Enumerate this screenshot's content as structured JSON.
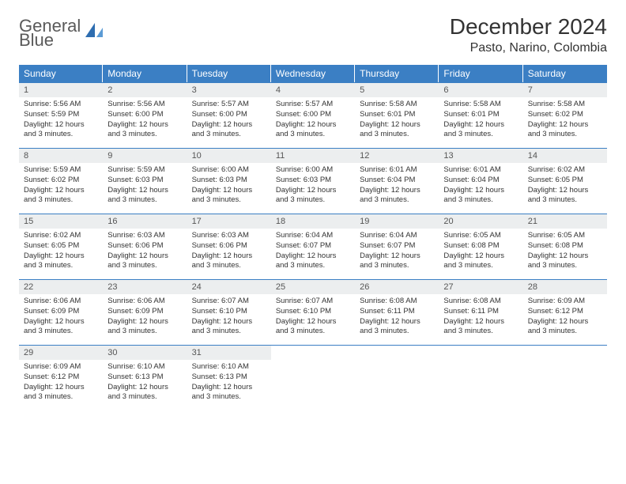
{
  "logo": {
    "line1": "General",
    "line2": "Blue"
  },
  "title": "December 2024",
  "location": "Pasto, Narino, Colombia",
  "colors": {
    "header_blue": "#3b7fc4",
    "date_bg": "#eceeef",
    "text": "#333333",
    "logo_gray": "#5a5a5a"
  },
  "weekdays": [
    "Sunday",
    "Monday",
    "Tuesday",
    "Wednesday",
    "Thursday",
    "Friday",
    "Saturday"
  ],
  "weeks": [
    [
      {
        "date": "1",
        "sunrise": "Sunrise: 5:56 AM",
        "sunset": "Sunset: 5:59 PM",
        "daylight": "Daylight: 12 hours and 3 minutes."
      },
      {
        "date": "2",
        "sunrise": "Sunrise: 5:56 AM",
        "sunset": "Sunset: 6:00 PM",
        "daylight": "Daylight: 12 hours and 3 minutes."
      },
      {
        "date": "3",
        "sunrise": "Sunrise: 5:57 AM",
        "sunset": "Sunset: 6:00 PM",
        "daylight": "Daylight: 12 hours and 3 minutes."
      },
      {
        "date": "4",
        "sunrise": "Sunrise: 5:57 AM",
        "sunset": "Sunset: 6:00 PM",
        "daylight": "Daylight: 12 hours and 3 minutes."
      },
      {
        "date": "5",
        "sunrise": "Sunrise: 5:58 AM",
        "sunset": "Sunset: 6:01 PM",
        "daylight": "Daylight: 12 hours and 3 minutes."
      },
      {
        "date": "6",
        "sunrise": "Sunrise: 5:58 AM",
        "sunset": "Sunset: 6:01 PM",
        "daylight": "Daylight: 12 hours and 3 minutes."
      },
      {
        "date": "7",
        "sunrise": "Sunrise: 5:58 AM",
        "sunset": "Sunset: 6:02 PM",
        "daylight": "Daylight: 12 hours and 3 minutes."
      }
    ],
    [
      {
        "date": "8",
        "sunrise": "Sunrise: 5:59 AM",
        "sunset": "Sunset: 6:02 PM",
        "daylight": "Daylight: 12 hours and 3 minutes."
      },
      {
        "date": "9",
        "sunrise": "Sunrise: 5:59 AM",
        "sunset": "Sunset: 6:03 PM",
        "daylight": "Daylight: 12 hours and 3 minutes."
      },
      {
        "date": "10",
        "sunrise": "Sunrise: 6:00 AM",
        "sunset": "Sunset: 6:03 PM",
        "daylight": "Daylight: 12 hours and 3 minutes."
      },
      {
        "date": "11",
        "sunrise": "Sunrise: 6:00 AM",
        "sunset": "Sunset: 6:03 PM",
        "daylight": "Daylight: 12 hours and 3 minutes."
      },
      {
        "date": "12",
        "sunrise": "Sunrise: 6:01 AM",
        "sunset": "Sunset: 6:04 PM",
        "daylight": "Daylight: 12 hours and 3 minutes."
      },
      {
        "date": "13",
        "sunrise": "Sunrise: 6:01 AM",
        "sunset": "Sunset: 6:04 PM",
        "daylight": "Daylight: 12 hours and 3 minutes."
      },
      {
        "date": "14",
        "sunrise": "Sunrise: 6:02 AM",
        "sunset": "Sunset: 6:05 PM",
        "daylight": "Daylight: 12 hours and 3 minutes."
      }
    ],
    [
      {
        "date": "15",
        "sunrise": "Sunrise: 6:02 AM",
        "sunset": "Sunset: 6:05 PM",
        "daylight": "Daylight: 12 hours and 3 minutes."
      },
      {
        "date": "16",
        "sunrise": "Sunrise: 6:03 AM",
        "sunset": "Sunset: 6:06 PM",
        "daylight": "Daylight: 12 hours and 3 minutes."
      },
      {
        "date": "17",
        "sunrise": "Sunrise: 6:03 AM",
        "sunset": "Sunset: 6:06 PM",
        "daylight": "Daylight: 12 hours and 3 minutes."
      },
      {
        "date": "18",
        "sunrise": "Sunrise: 6:04 AM",
        "sunset": "Sunset: 6:07 PM",
        "daylight": "Daylight: 12 hours and 3 minutes."
      },
      {
        "date": "19",
        "sunrise": "Sunrise: 6:04 AM",
        "sunset": "Sunset: 6:07 PM",
        "daylight": "Daylight: 12 hours and 3 minutes."
      },
      {
        "date": "20",
        "sunrise": "Sunrise: 6:05 AM",
        "sunset": "Sunset: 6:08 PM",
        "daylight": "Daylight: 12 hours and 3 minutes."
      },
      {
        "date": "21",
        "sunrise": "Sunrise: 6:05 AM",
        "sunset": "Sunset: 6:08 PM",
        "daylight": "Daylight: 12 hours and 3 minutes."
      }
    ],
    [
      {
        "date": "22",
        "sunrise": "Sunrise: 6:06 AM",
        "sunset": "Sunset: 6:09 PM",
        "daylight": "Daylight: 12 hours and 3 minutes."
      },
      {
        "date": "23",
        "sunrise": "Sunrise: 6:06 AM",
        "sunset": "Sunset: 6:09 PM",
        "daylight": "Daylight: 12 hours and 3 minutes."
      },
      {
        "date": "24",
        "sunrise": "Sunrise: 6:07 AM",
        "sunset": "Sunset: 6:10 PM",
        "daylight": "Daylight: 12 hours and 3 minutes."
      },
      {
        "date": "25",
        "sunrise": "Sunrise: 6:07 AM",
        "sunset": "Sunset: 6:10 PM",
        "daylight": "Daylight: 12 hours and 3 minutes."
      },
      {
        "date": "26",
        "sunrise": "Sunrise: 6:08 AM",
        "sunset": "Sunset: 6:11 PM",
        "daylight": "Daylight: 12 hours and 3 minutes."
      },
      {
        "date": "27",
        "sunrise": "Sunrise: 6:08 AM",
        "sunset": "Sunset: 6:11 PM",
        "daylight": "Daylight: 12 hours and 3 minutes."
      },
      {
        "date": "28",
        "sunrise": "Sunrise: 6:09 AM",
        "sunset": "Sunset: 6:12 PM",
        "daylight": "Daylight: 12 hours and 3 minutes."
      }
    ],
    [
      {
        "date": "29",
        "sunrise": "Sunrise: 6:09 AM",
        "sunset": "Sunset: 6:12 PM",
        "daylight": "Daylight: 12 hours and 3 minutes."
      },
      {
        "date": "30",
        "sunrise": "Sunrise: 6:10 AM",
        "sunset": "Sunset: 6:13 PM",
        "daylight": "Daylight: 12 hours and 3 minutes."
      },
      {
        "date": "31",
        "sunrise": "Sunrise: 6:10 AM",
        "sunset": "Sunset: 6:13 PM",
        "daylight": "Daylight: 12 hours and 3 minutes."
      },
      null,
      null,
      null,
      null
    ]
  ]
}
